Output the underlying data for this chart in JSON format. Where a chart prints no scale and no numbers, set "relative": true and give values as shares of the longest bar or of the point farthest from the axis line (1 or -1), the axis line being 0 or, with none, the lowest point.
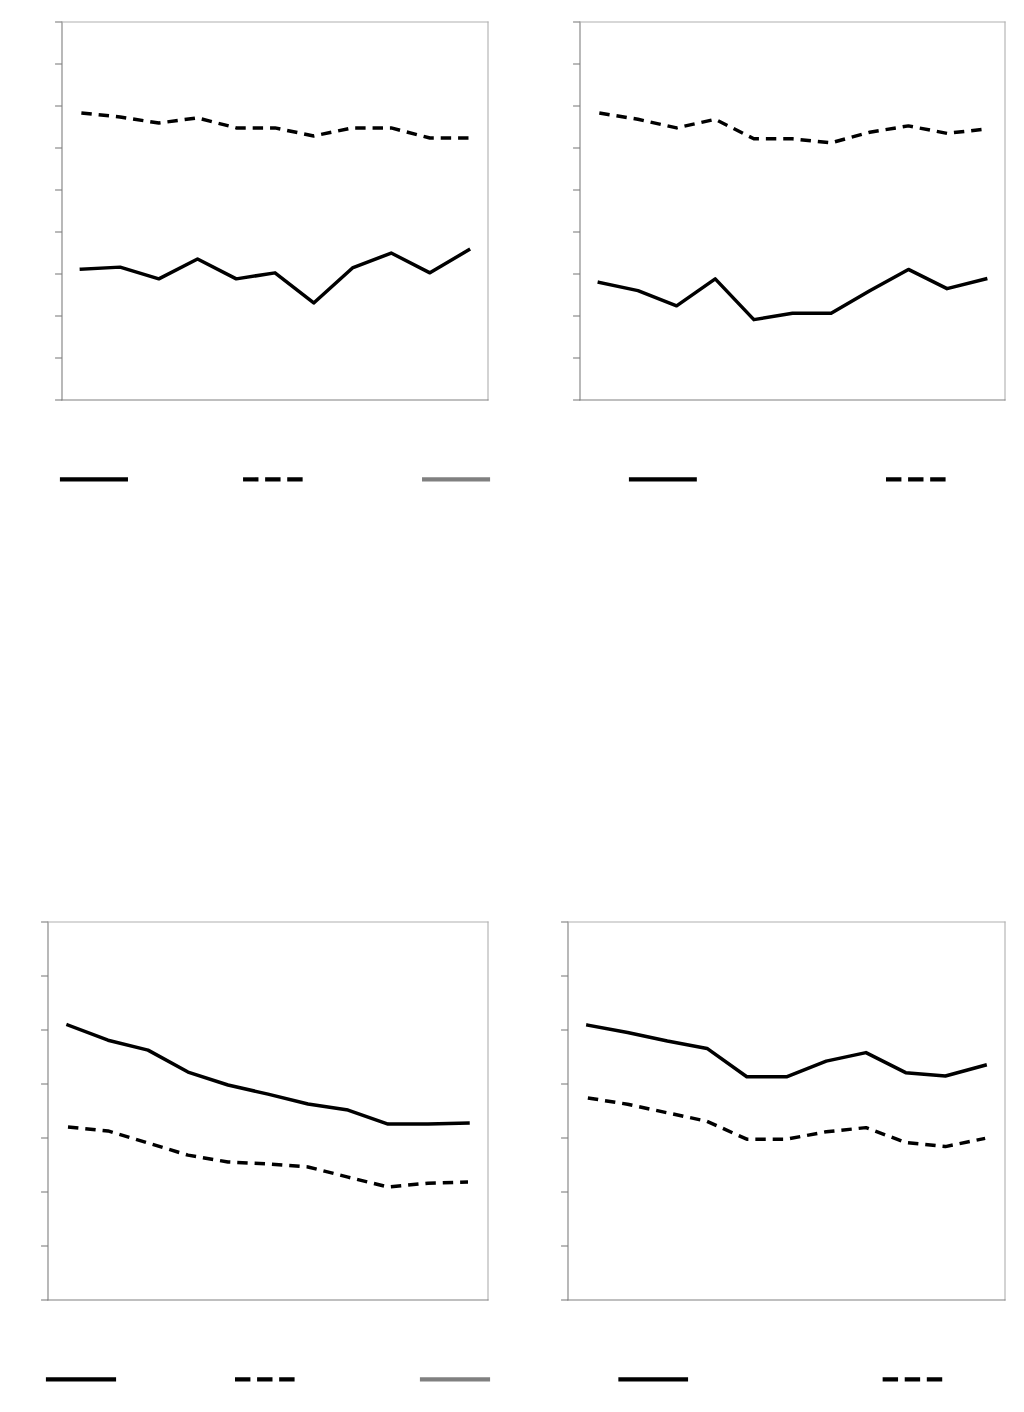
{
  "chart_data": [
    {
      "type": "line",
      "relative": true,
      "categories": [
        null,
        null,
        null,
        null,
        null,
        null,
        null,
        null,
        null,
        null,
        null
      ],
      "series": [
        {
          "color": "#000000",
          "line_style": "solid",
          "values": [
            0.456,
            0.463,
            0.422,
            0.491,
            0.422,
            0.443,
            0.338,
            0.46,
            0.512,
            0.443,
            0.523
          ]
        },
        {
          "color": "#000000",
          "line_style": "dashed",
          "values": [
            1,
            0.986,
            0.965,
            0.983,
            0.948,
            0.948,
            0.92,
            0.948,
            0.948,
            0.913,
            0.913
          ]
        },
        {
          "color": "#808080",
          "line_style": "solid",
          "values": [
            null,
            null,
            null,
            null,
            null,
            null,
            null,
            null,
            null,
            null,
            null
          ]
        }
      ]
    },
    {
      "type": "line",
      "relative": true,
      "categories": [
        null,
        null,
        null,
        null,
        null,
        null,
        null,
        null,
        null,
        null,
        null
      ],
      "series": [
        {
          "color": "#000000",
          "line_style": "solid",
          "values": [
            0.41,
            0.381,
            0.328,
            0.422,
            0.28,
            0.302,
            0.302,
            0.381,
            0.455,
            0.388,
            0.422
          ]
        },
        {
          "color": "#000000",
          "line_style": "dashed",
          "values": [
            1,
            0.978,
            0.948,
            0.978,
            0.91,
            0.91,
            0.896,
            0.933,
            0.955,
            0.929,
            0.944
          ]
        }
      ]
    },
    {
      "type": "line",
      "relative": true,
      "categories": [
        null,
        null,
        null,
        null,
        null,
        null,
        null,
        null,
        null,
        null,
        null
      ],
      "series": [
        {
          "color": "#000000",
          "line_style": "solid",
          "values": [
            1,
            0.945,
            0.909,
            0.829,
            0.782,
            0.749,
            0.713,
            0.691,
            0.64,
            0.64,
            0.644
          ]
        },
        {
          "color": "#000000",
          "line_style": "dashed",
          "values": [
            0.629,
            0.615,
            0.571,
            0.527,
            0.502,
            0.495,
            0.484,
            0.447,
            0.411,
            0.425,
            0.429
          ]
        },
        {
          "color": "#808080",
          "line_style": "solid",
          "values": [
            null,
            null,
            null,
            null,
            null,
            null,
            null,
            null,
            null,
            null,
            null
          ]
        }
      ]
    },
    {
      "type": "line",
      "relative": true,
      "categories": [
        null,
        null,
        null,
        null,
        null,
        null,
        null,
        null,
        null,
        null,
        null
      ],
      "series": [
        {
          "color": "#000000",
          "line_style": "solid",
          "values": [
            1,
            0.973,
            0.942,
            0.915,
            0.812,
            0.812,
            0.869,
            0.9,
            0.827,
            0.815,
            0.854
          ]
        },
        {
          "color": "#000000",
          "line_style": "dashed",
          "values": [
            0.735,
            0.712,
            0.681,
            0.65,
            0.585,
            0.585,
            0.612,
            0.627,
            0.573,
            0.558,
            0.588
          ]
        }
      ]
    }
  ]
}
